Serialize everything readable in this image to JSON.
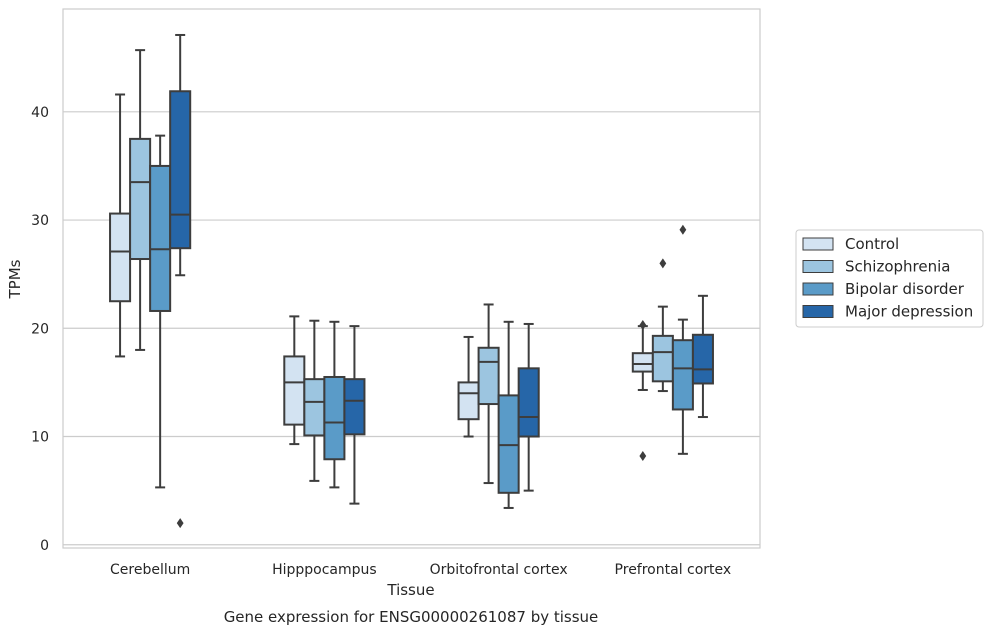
{
  "chart_data": {
    "type": "box",
    "title": "",
    "caption": "Gene expression for ENSG00000261087 by tissue",
    "xlabel": "Tissue",
    "ylabel": "TPMs",
    "ylim": [
      -0.3,
      49.5
    ],
    "yticks": [
      0,
      10,
      20,
      30,
      40
    ],
    "grid": "horizontal",
    "legend_position": "right",
    "categories": [
      "Cerebellum",
      "Hipppocampus",
      "Orbitofrontal cortex",
      "Prefrontal cortex"
    ],
    "series": [
      {
        "name": "Control",
        "color": "#d3e3f2",
        "boxes": [
          {
            "whislo": 17.4,
            "q1": 22.5,
            "med": 27.1,
            "q3": 30.6,
            "whishi": 41.6,
            "fliers": []
          },
          {
            "whislo": 9.3,
            "q1": 11.1,
            "med": 15.0,
            "q3": 17.4,
            "whishi": 21.1,
            "fliers": []
          },
          {
            "whislo": 10.0,
            "q1": 11.6,
            "med": 14.0,
            "q3": 15.0,
            "whishi": 19.2,
            "fliers": []
          },
          {
            "whislo": 14.3,
            "q1": 16.0,
            "med": 16.7,
            "q3": 17.7,
            "whishi": 20.2,
            "fliers": [
              20.3,
              8.2
            ]
          }
        ]
      },
      {
        "name": "Schizophrenia",
        "color": "#9cc5e0",
        "boxes": [
          {
            "whislo": 18.0,
            "q1": 26.4,
            "med": 33.5,
            "q3": 37.5,
            "whishi": 45.7,
            "fliers": []
          },
          {
            "whislo": 5.9,
            "q1": 10.1,
            "med": 13.2,
            "q3": 15.3,
            "whishi": 20.7,
            "fliers": []
          },
          {
            "whislo": 5.7,
            "q1": 13.0,
            "med": 16.9,
            "q3": 18.2,
            "whishi": 22.2,
            "fliers": []
          },
          {
            "whislo": 14.2,
            "q1": 15.1,
            "med": 17.8,
            "q3": 19.3,
            "whishi": 22.0,
            "fliers": [
              26.0
            ]
          }
        ]
      },
      {
        "name": "Bipolar disorder",
        "color": "#5a9bc8",
        "boxes": [
          {
            "whislo": 5.3,
            "q1": 21.6,
            "med": 27.3,
            "q3": 35.0,
            "whishi": 37.8,
            "fliers": []
          },
          {
            "whislo": 5.3,
            "q1": 7.9,
            "med": 11.3,
            "q3": 15.5,
            "whishi": 20.6,
            "fliers": []
          },
          {
            "whislo": 3.4,
            "q1": 4.8,
            "med": 9.2,
            "q3": 13.8,
            "whishi": 20.6,
            "fliers": []
          },
          {
            "whislo": 8.4,
            "q1": 12.5,
            "med": 16.3,
            "q3": 18.9,
            "whishi": 20.8,
            "fliers": [
              29.1
            ]
          }
        ]
      },
      {
        "name": "Major depression",
        "color": "#2666a8",
        "boxes": [
          {
            "whislo": 24.9,
            "q1": 27.4,
            "med": 30.5,
            "q3": 41.9,
            "whishi": 47.1,
            "fliers": [
              2.0
            ]
          },
          {
            "whislo": 3.8,
            "q1": 10.2,
            "med": 13.3,
            "q3": 15.3,
            "whishi": 20.2,
            "fliers": []
          },
          {
            "whislo": 5.0,
            "q1": 10.0,
            "med": 11.8,
            "q3": 16.3,
            "whishi": 20.4,
            "fliers": []
          },
          {
            "whislo": 11.8,
            "q1": 14.9,
            "med": 16.2,
            "q3": 19.4,
            "whishi": 23.0,
            "fliers": []
          }
        ]
      }
    ]
  }
}
